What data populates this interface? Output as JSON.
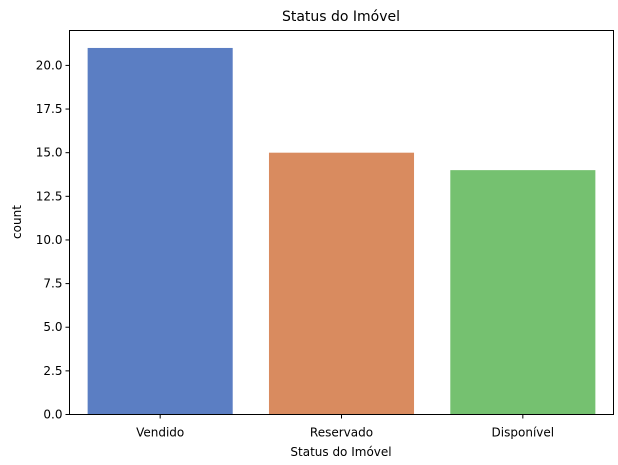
{
  "chart_data": {
    "type": "bar",
    "title": "Status do Imóvel",
    "xlabel": "Status do Imóvel",
    "ylabel": "count",
    "categories": [
      "Vendido",
      "Reservado",
      "Disponível"
    ],
    "values": [
      21,
      15,
      14
    ],
    "colors": [
      "#5b7ec3",
      "#d98b5f",
      "#75c170"
    ],
    "ylim": [
      0,
      22
    ],
    "yticks": [
      0,
      2.5,
      5,
      7.5,
      10,
      12.5,
      15,
      17.5,
      20
    ],
    "ytick_labels": [
      "0.0",
      "2.5",
      "5.0",
      "7.5",
      "10.0",
      "12.5",
      "15.0",
      "17.5",
      "20.0"
    ],
    "grid": false,
    "legend": "none"
  }
}
